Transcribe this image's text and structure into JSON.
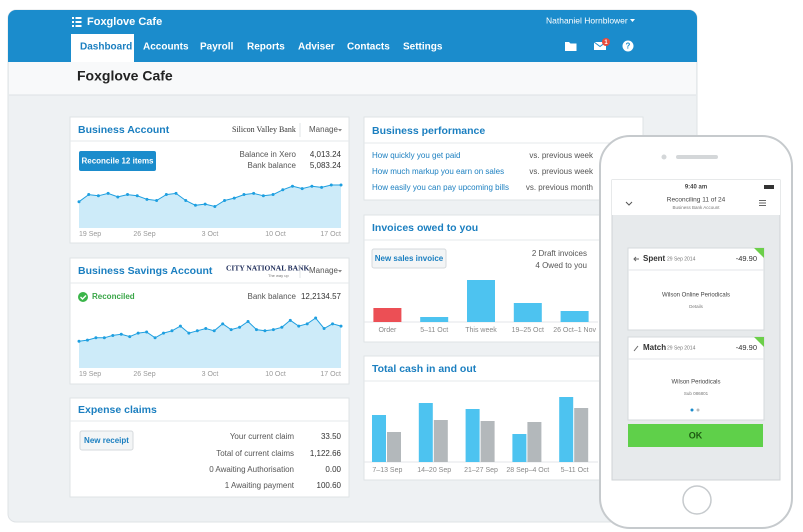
{
  "app": {
    "name": "Foxglove Cafe",
    "user": "Nathaniel Hornblower",
    "nav": [
      "Dashboard",
      "Accounts",
      "Payroll",
      "Reports",
      "Adviser",
      "Contacts",
      "Settings"
    ],
    "mail_badge": "1",
    "help": "?"
  },
  "page_title": "Foxglove Cafe",
  "business_account": {
    "title": "Business Account",
    "bank": "Silicon Valley Bank",
    "manage": "Manage",
    "button": "Reconcile 12 items",
    "rows": [
      [
        "Balance in Xero",
        "4,013.24"
      ],
      [
        "Bank balance",
        "5,083.24"
      ]
    ],
    "chart": {
      "type": "area",
      "values": [
        22,
        28,
        27,
        29,
        26,
        28,
        27,
        24,
        23,
        28,
        29,
        23,
        19,
        20,
        18,
        23,
        25,
        28,
        29,
        27,
        28,
        32,
        35,
        33,
        35,
        34,
        36,
        36
      ],
      "x_labels": [
        "19 Sep",
        "26 Sep",
        "3 Oct",
        "10 Oct",
        "17 Oct"
      ]
    }
  },
  "savings_account": {
    "title": "Business Savings Account",
    "bank": "CITY NATIONAL BANK",
    "bank_tagline": "The way up",
    "manage": "Manage",
    "status": "Reconciled",
    "rows": [
      [
        "Bank balance",
        "12,2134.57"
      ]
    ],
    "chart": {
      "type": "area",
      "values": [
        23,
        24,
        26,
        26,
        28,
        29,
        27,
        30,
        31,
        26,
        30,
        32,
        36,
        30,
        32,
        34,
        32,
        38,
        33,
        35,
        40,
        33,
        32,
        33,
        35,
        41,
        36,
        38,
        43,
        34,
        38,
        36
      ],
      "x_labels": [
        "19 Sep",
        "26 Sep",
        "3 Oct",
        "10 Oct",
        "17 Oct"
      ]
    }
  },
  "expense_claims": {
    "title": "Expense claims",
    "button": "New receipt",
    "rows": [
      [
        "Your current claim",
        "33.50"
      ],
      [
        "Total of current claims",
        "1,122.66"
      ],
      [
        "0 Awaiting Authorisation",
        "0.00"
      ],
      [
        "1 Awaiting payment",
        "100.60"
      ]
    ]
  },
  "business_performance": {
    "title": "Business performance",
    "rows": [
      [
        "How quickly you get paid",
        "vs. previous week"
      ],
      [
        "How much markup you earn on sales",
        "vs. previous week"
      ],
      [
        "How easily you can pay upcoming bills",
        "vs. previous month"
      ]
    ]
  },
  "invoices": {
    "title": "Invoices owed to you",
    "button": "New sales invoice",
    "notes": [
      "2 Draft invoices",
      "4 Owed to you"
    ],
    "chart": {
      "type": "bar",
      "categories": [
        "Order",
        "5–11 Oct",
        "This week",
        "19–25 Oct",
        "26 Oct–1 Nov"
      ],
      "values": [
        14,
        5,
        42,
        19,
        11
      ],
      "colors": [
        "#ec4f55",
        "#4dc3f0",
        "#4dc3f0",
        "#4dc3f0",
        "#4dc3f0"
      ]
    }
  },
  "cash": {
    "title": "Total cash in and out",
    "chart": {
      "type": "bar",
      "categories": [
        "7–13 Sep",
        "14–20 Sep",
        "21–27 Sep",
        "28 Sep–4 Oct",
        "5–11 Oct"
      ],
      "series": [
        {
          "color": "#4dc3f0",
          "values": [
            47,
            59,
            53,
            28,
            65
          ]
        },
        {
          "color": "#b3b8bb",
          "values": [
            30,
            42,
            41,
            40,
            54
          ]
        }
      ]
    }
  },
  "phone": {
    "time": "9:40 am",
    "title": "Reconciling 11 of 24",
    "subtitle": "Business Bank Account",
    "cards": [
      {
        "action": "Spent",
        "date": "29 Sep 2014",
        "amount": "-49.90",
        "payee": "Wilson Online Periodicals",
        "detail": "Details"
      },
      {
        "action": "Match",
        "date": "29 Sep 2014",
        "amount": "-49.90",
        "payee": "Wilson Periodicals",
        "detail": "Sub 086801"
      }
    ],
    "button": "OK"
  }
}
